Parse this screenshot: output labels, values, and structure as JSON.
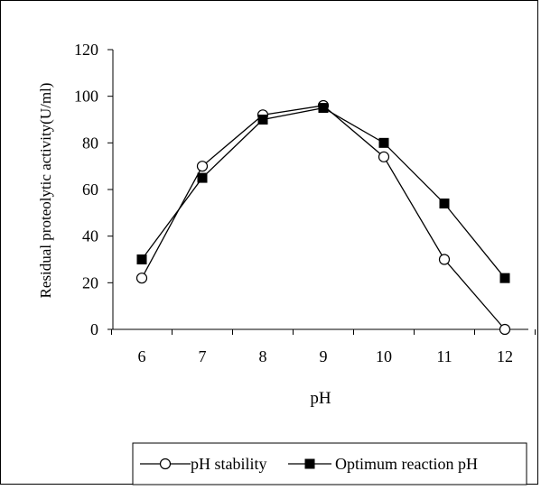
{
  "chart_data": {
    "type": "line",
    "title": "",
    "xlabel": "pH",
    "ylabel": "Residual proteolytic activity(U/ml)",
    "categories": [
      "6",
      "7",
      "8",
      "9",
      "10",
      "11",
      "12"
    ],
    "x": [
      6,
      7,
      8,
      9,
      10,
      11,
      12
    ],
    "ylim": [
      0,
      120
    ],
    "yticks": [
      0,
      20,
      40,
      60,
      80,
      100,
      120
    ],
    "ytick_labels": [
      "0",
      "20",
      "40",
      "60",
      "80",
      "100",
      "120"
    ],
    "grid": false,
    "legend_position": "bottom",
    "series": [
      {
        "name": "pH stability",
        "marker": "open-circle",
        "values": [
          22,
          70,
          92,
          96,
          74,
          30,
          0
        ]
      },
      {
        "name": "Optimum reaction pH",
        "marker": "filled-square",
        "values": [
          30,
          65,
          90,
          95,
          80,
          54,
          22
        ]
      }
    ]
  }
}
